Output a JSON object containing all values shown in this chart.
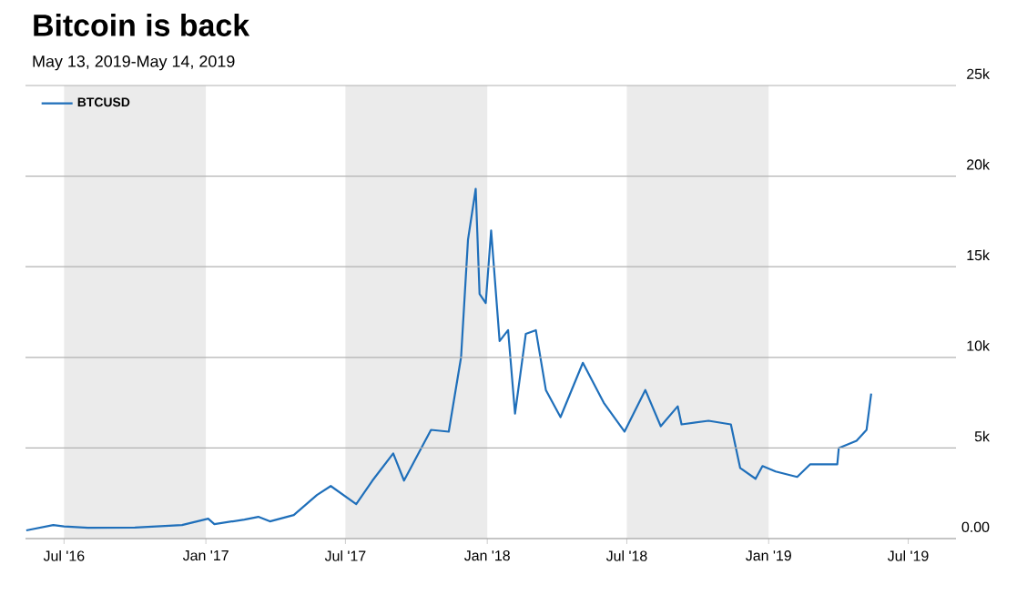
{
  "chart_data": {
    "type": "line",
    "title": "Bitcoin is back",
    "subtitle": "May 13, 2019-May 14, 2019",
    "x": [
      "2016-05-13",
      "2016-06-17",
      "2016-07-01",
      "2016-08-01",
      "2016-10-01",
      "2016-12-01",
      "2017-01-04",
      "2017-01-12",
      "2017-02-20",
      "2017-03-10",
      "2017-03-25",
      "2017-04-25",
      "2017-05-25",
      "2017-06-12",
      "2017-07-15",
      "2017-08-05",
      "2017-09-01",
      "2017-09-15",
      "2017-10-20",
      "2017-11-12",
      "2017-11-28",
      "2017-12-07",
      "2017-12-17",
      "2017-12-22",
      "2017-12-30",
      "2018-01-06",
      "2018-01-17",
      "2018-01-28",
      "2018-02-06",
      "2018-02-20",
      "2018-03-05",
      "2018-03-18",
      "2018-04-06",
      "2018-05-05",
      "2018-06-01",
      "2018-06-28",
      "2018-07-25",
      "2018-08-14",
      "2018-09-05",
      "2018-09-10",
      "2018-10-15",
      "2018-11-13",
      "2018-11-25",
      "2018-12-15",
      "2018-12-24",
      "2019-01-10",
      "2019-02-07",
      "2019-02-24",
      "2019-03-31",
      "2019-04-02",
      "2019-04-25",
      "2019-05-08",
      "2019-05-14"
    ],
    "series": [
      {
        "name": "BTCUSD",
        "color": "#1f6fba",
        "values": [
          450,
          750,
          670,
          600,
          610,
          750,
          1100,
          800,
          1050,
          1200,
          950,
          1300,
          2400,
          2900,
          1900,
          3200,
          4700,
          3200,
          6000,
          5900,
          10000,
          16500,
          19300,
          13500,
          13000,
          17000,
          10900,
          11500,
          6900,
          11300,
          11500,
          8200,
          6700,
          9700,
          7500,
          5900,
          8200,
          6200,
          7300,
          6300,
          6500,
          6300,
          3900,
          3300,
          4000,
          3700,
          3400,
          4100,
          4100,
          5000,
          5400,
          6000,
          8000
        ]
      }
    ],
    "xlim": [
      "2016-05-12",
      "2019-09-01"
    ],
    "xticks": [
      {
        "value": "2016-07-01",
        "label": "Jul '16"
      },
      {
        "value": "2017-01-01",
        "label": "Jan '17"
      },
      {
        "value": "2017-07-01",
        "label": "Jul '17"
      },
      {
        "value": "2018-01-01",
        "label": "Jan '18"
      },
      {
        "value": "2018-07-01",
        "label": "Jul '18"
      },
      {
        "value": "2019-01-01",
        "label": "Jan '19"
      },
      {
        "value": "2019-07-01",
        "label": "Jul '19"
      }
    ],
    "ylim": [
      0,
      25000
    ],
    "yticks": [
      {
        "value": 0,
        "label": "0.00"
      },
      {
        "value": 5000,
        "label": "5k"
      },
      {
        "value": 10000,
        "label": "10k"
      },
      {
        "value": 15000,
        "label": "15k"
      },
      {
        "value": 20000,
        "label": "20k"
      },
      {
        "value": 25000,
        "label": "25k"
      }
    ],
    "bands": [
      {
        "axis": "x",
        "from": "2016-07-01",
        "to": "2017-01-01",
        "color": "#ebebeb"
      },
      {
        "axis": "x",
        "from": "2017-07-01",
        "to": "2018-01-01",
        "color": "#ebebeb"
      },
      {
        "axis": "x",
        "from": "2018-07-01",
        "to": "2019-01-01",
        "color": "#ebebeb"
      }
    ],
    "grid": "y",
    "legend": "top left",
    "marker": "none",
    "line_style": "solid"
  }
}
